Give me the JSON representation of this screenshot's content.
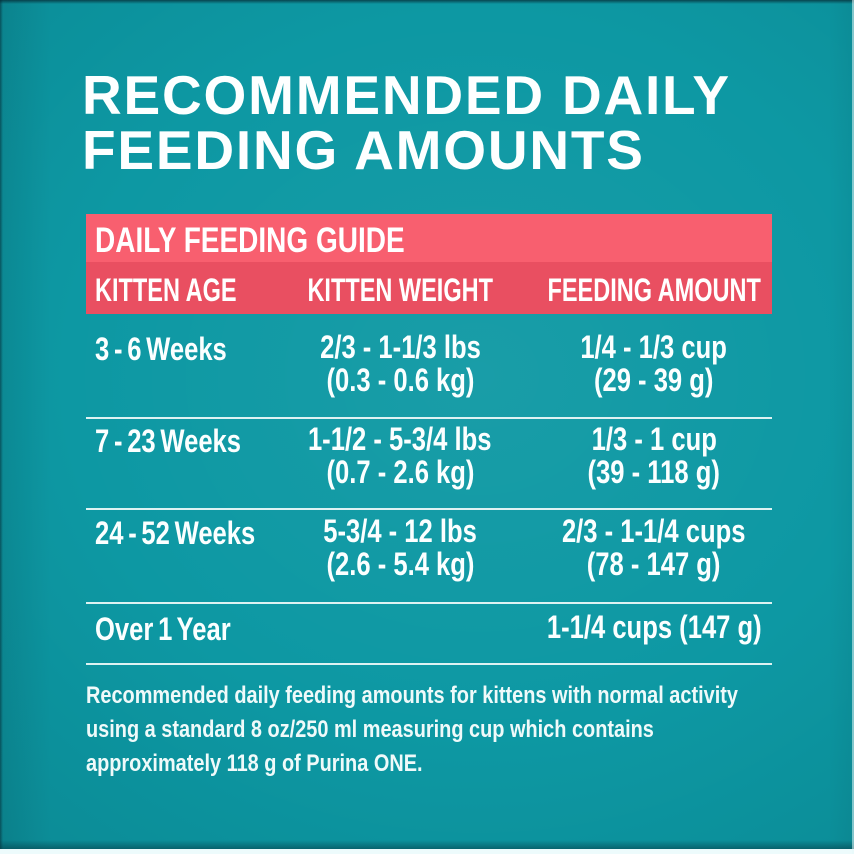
{
  "header": {
    "title_line1": "RECOMMENDED DAILY",
    "title_line2": "FEEDING AMOUNTS"
  },
  "feeding_guide": {
    "banner_title": "DAILY FEEDING GUIDE",
    "columns": {
      "age": "KITTEN AGE",
      "weight": "KITTEN WEIGHT",
      "amount": "FEEDING AMOUNT"
    },
    "rows": [
      {
        "age": "3 - 6 Weeks",
        "weight_lbs": "2/3 - 1-1/3 lbs",
        "weight_kg": "(0.3 - 0.6 kg)",
        "amount_cups": "1/4 - 1/3 cup",
        "amount_g": "(29 - 39 g)"
      },
      {
        "age": "7 - 23 Weeks",
        "weight_lbs": "1-1/2 - 5-3/4 lbs",
        "weight_kg": "(0.7 - 2.6 kg)",
        "amount_cups": "1/3 - 1 cup",
        "amount_g": "(39 - 118 g)"
      },
      {
        "age": "24 - 52 Weeks",
        "weight_lbs": "5-3/4 - 12 lbs",
        "weight_kg": "(2.6 - 5.4 kg)",
        "amount_cups": "2/3 - 1-1/4 cups",
        "amount_g": "(78 - 147 g)"
      },
      {
        "age": "Over 1 Year",
        "weight_lbs": "",
        "weight_kg": "",
        "amount_cups": "1-1/4 cups (147 g)",
        "amount_g": ""
      }
    ]
  },
  "footnote": {
    "lines": [
      "Recommended daily feeding amounts for kittens with normal activity",
      "using a standard 8 oz/250 ml measuring cup which contains",
      "approximately 118 g of Purina ONE."
    ]
  },
  "colors": {
    "background_teal": "#0D98A3",
    "banner_pink": "#F85F6F",
    "column_header_pink": "#E94F61",
    "text_white": "#FFFFFF",
    "separator_line": "#E9F7F7"
  }
}
